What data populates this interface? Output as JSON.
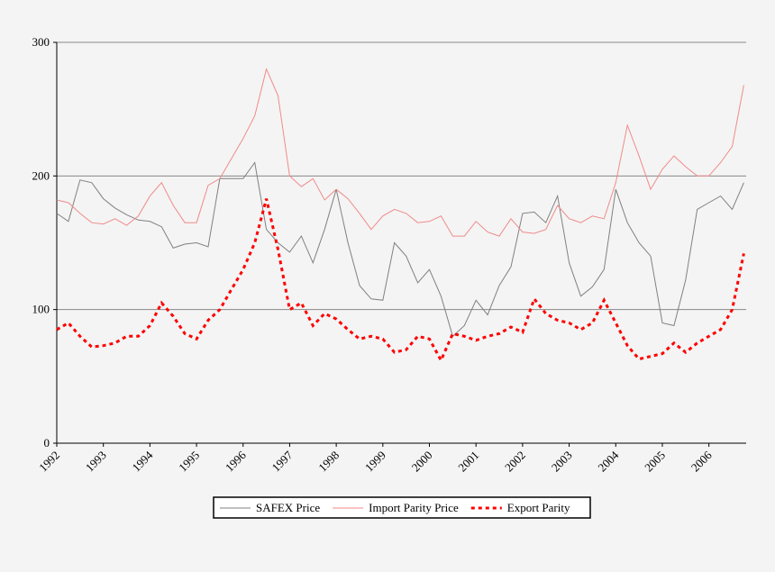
{
  "chart_data": {
    "type": "line",
    "x": [
      1992,
      1992.25,
      1992.5,
      1992.75,
      1993,
      1993.25,
      1993.5,
      1993.75,
      1994,
      1994.25,
      1994.5,
      1994.75,
      1995,
      1995.25,
      1995.5,
      1995.75,
      1996,
      1996.25,
      1996.5,
      1996.75,
      1997,
      1997.25,
      1997.5,
      1997.75,
      1998,
      1998.25,
      1998.5,
      1998.75,
      1999,
      1999.25,
      1999.5,
      1999.75,
      2000,
      2000.25,
      2000.5,
      2000.75,
      2001,
      2001.25,
      2001.5,
      2001.75,
      2002,
      2002.25,
      2002.5,
      2002.75,
      2003,
      2003.25,
      2003.5,
      2003.75,
      2004,
      2004.25,
      2004.5,
      2004.75,
      2005,
      2005.25,
      2005.5,
      2005.75,
      2006,
      2006.25,
      2006.5,
      2006.75
    ],
    "series": [
      {
        "name": "SAFEX Price",
        "color": "#808080",
        "line_style": "solid",
        "values": [
          172,
          166,
          197,
          195,
          183,
          176,
          171,
          167,
          166,
          162,
          146,
          149,
          150,
          147,
          198,
          198,
          198,
          210,
          160,
          150,
          143,
          155,
          135,
          160,
          190,
          150,
          118,
          108,
          107,
          150,
          140,
          120,
          130,
          110,
          80,
          88,
          107,
          96,
          118,
          132,
          172,
          173,
          165,
          185,
          135,
          110,
          117,
          130,
          190,
          165,
          150,
          140,
          90,
          88,
          122,
          175,
          180,
          185,
          175,
          195
        ]
      },
      {
        "name": "Import Parity Price",
        "color": "#f08a8a",
        "line_style": "solid",
        "values": [
          182,
          180,
          172,
          165,
          164,
          168,
          163,
          170,
          185,
          195,
          178,
          165,
          165,
          193,
          198,
          213,
          228,
          245,
          280,
          260,
          200,
          192,
          198,
          182,
          190,
          183,
          172,
          160,
          170,
          175,
          172,
          165,
          166,
          170,
          155,
          155,
          166,
          158,
          155,
          168,
          158,
          157,
          160,
          178,
          168,
          165,
          170,
          168,
          195,
          238,
          215,
          190,
          205,
          215,
          207,
          200,
          200,
          210,
          222,
          268
        ]
      },
      {
        "name": "Export Parity",
        "color": "#ff0000",
        "line_style": "dotted",
        "values": [
          85,
          90,
          80,
          72,
          73,
          75,
          80,
          80,
          88,
          105,
          95,
          82,
          78,
          92,
          100,
          115,
          130,
          150,
          183,
          145,
          100,
          105,
          88,
          97,
          93,
          85,
          78,
          80,
          78,
          68,
          70,
          80,
          78,
          62,
          82,
          80,
          77,
          80,
          82,
          87,
          83,
          108,
          97,
          92,
          90,
          85,
          90,
          107,
          90,
          73,
          63,
          65,
          67,
          75,
          68,
          75,
          80,
          85,
          100,
          142
        ]
      }
    ],
    "xlim": [
      1992,
      2006.8
    ],
    "xticks": [
      1992,
      1993,
      1994,
      1995,
      1996,
      1997,
      1998,
      1999,
      2000,
      2001,
      2002,
      2003,
      2004,
      2005,
      2006
    ],
    "ylim": [
      0,
      300
    ],
    "yticks": [
      0,
      100,
      200,
      300
    ],
    "grid": true,
    "legend": "bottom"
  }
}
